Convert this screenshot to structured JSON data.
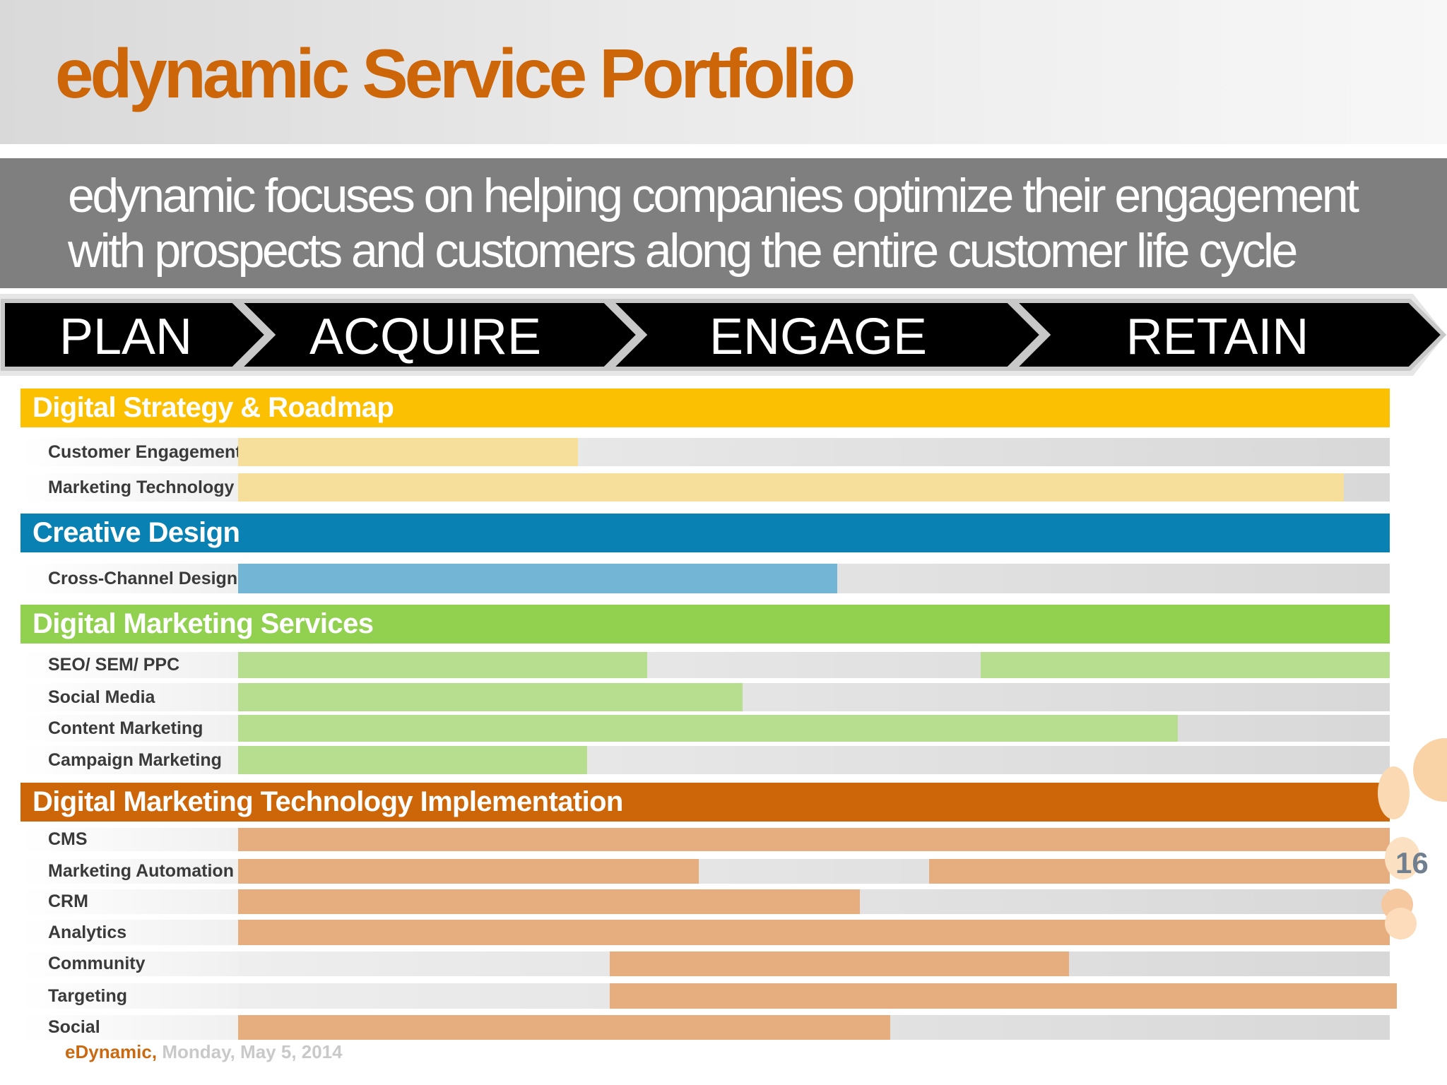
{
  "title": "edynamic Service Portfolio",
  "subtitle": "edynamic focuses on helping companies optimize their engagement with prospects and customers along the entire customer life cycle",
  "phases": [
    "PLAN",
    "ACQUIRE",
    "ENGAGE",
    "RETAIN"
  ],
  "groups": [
    {
      "title": "Digital Strategy & Roadmap",
      "color": "#fcc003",
      "bar_color": "#f5df9a",
      "rows": [
        {
          "label": "Customer Engagement",
          "segments": [
            [
              0.0,
              0.295
            ]
          ]
        },
        {
          "label": "Marketing Technology",
          "segments": [
            [
              0.0,
              0.96
            ]
          ]
        }
      ]
    },
    {
      "title": "Creative Design",
      "color": "#0981b2",
      "bar_color": "#72b5d4",
      "rows": [
        {
          "label": "Cross-Channel Design",
          "segments": [
            [
              0.0,
              0.52
            ]
          ]
        }
      ]
    },
    {
      "title": "Digital Marketing Services",
      "color": "#92d050",
      "bar_color": "#b7dd8e",
      "rows": [
        {
          "label": "SEO/ SEM/ PPC",
          "segments": [
            [
              0.0,
              0.355
            ],
            [
              0.645,
              1.0
            ]
          ]
        },
        {
          "label": "Social Media",
          "segments": [
            [
              0.0,
              0.438
            ]
          ]
        },
        {
          "label": "Content Marketing",
          "segments": [
            [
              0.0,
              0.816
            ]
          ]
        },
        {
          "label": "Campaign Marketing",
          "segments": [
            [
              0.0,
              0.303
            ]
          ]
        }
      ]
    },
    {
      "title": "Digital Marketing Technology Implementation",
      "color": "#cc6608",
      "bar_color": "#e6ad7e",
      "rows": [
        {
          "label": "CMS",
          "segments": [
            [
              0.0,
              1.0
            ]
          ]
        },
        {
          "label": "Marketing Automation",
          "segments": [
            [
              0.0,
              0.4
            ],
            [
              0.6,
              1.0
            ]
          ]
        },
        {
          "label": "CRM",
          "segments": [
            [
              0.0,
              0.54
            ]
          ]
        },
        {
          "label": "Analytics",
          "segments": [
            [
              0.0,
              1.0
            ]
          ]
        },
        {
          "label": "Community",
          "segments": [
            [
              0.323,
              0.722
            ]
          ]
        },
        {
          "label": "Targeting",
          "segments": [
            [
              0.321,
              1.0
            ]
          ]
        },
        {
          "label": "Social",
          "segments": [
            [
              0.0,
              0.566
            ]
          ]
        }
      ]
    }
  ],
  "page_number": "16",
  "footer": {
    "brand": "eDynamic,",
    "date": "Monday, May 5, 2014"
  }
}
